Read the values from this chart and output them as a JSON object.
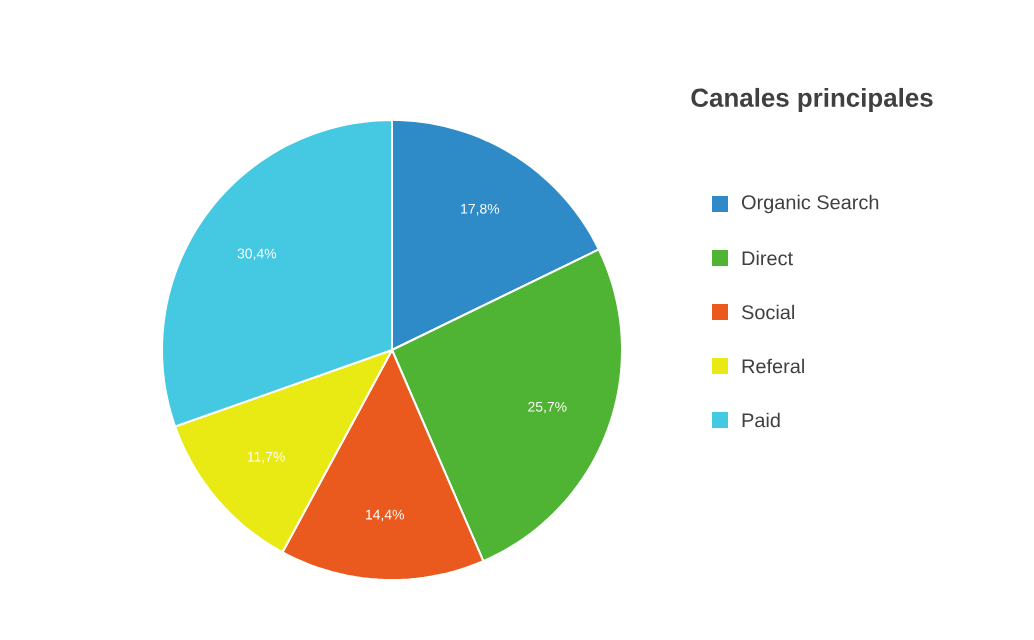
{
  "chart_data": {
    "type": "pie",
    "title": "Canales principales",
    "categories": [
      "Organic Search",
      "Direct",
      "Social",
      "Referal",
      "Paid"
    ],
    "values": [
      17.8,
      25.7,
      14.4,
      11.7,
      30.4
    ],
    "colors": [
      "#2f8ac8",
      "#4fb334",
      "#ea5a1e",
      "#e9ea14",
      "#45c9e3"
    ],
    "value_labels": [
      "17,8%",
      "25,7%",
      "14,4%",
      "11,7%",
      "30,4%"
    ],
    "legend": "right"
  }
}
